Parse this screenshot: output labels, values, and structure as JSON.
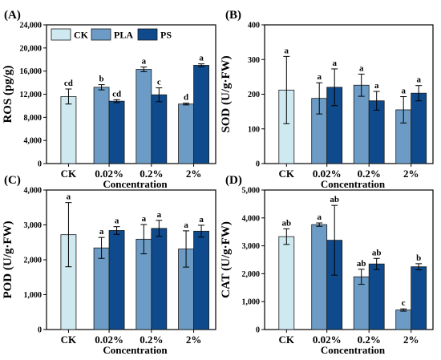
{
  "legend": {
    "entries": [
      {
        "name": "CK",
        "color": "#cfe9f1"
      },
      {
        "name": "PLA",
        "color": "#6c9cc6"
      },
      {
        "name": "PS",
        "color": "#0e4a8c"
      }
    ]
  },
  "chart_data": [
    {
      "panel": "(A)",
      "type": "bar",
      "ylabel": "ROS (pg/g)",
      "xlabel": "Concentration",
      "ylim": [
        0,
        24000
      ],
      "yticks": [
        0,
        4000,
        8000,
        12000,
        16000,
        20000,
        24000
      ],
      "ytick_labels": [
        "0",
        "4,000",
        "8,000",
        "12,000",
        "16,000",
        "20,000",
        "24,000"
      ],
      "categories": [
        "CK",
        "0.02%",
        "0.2%",
        "2%"
      ],
      "groups": [
        {
          "category": "CK",
          "bars": [
            {
              "series": "CK",
              "value": 11600,
              "err": 1300,
              "label": "cd"
            }
          ]
        },
        {
          "category": "0.02%",
          "bars": [
            {
              "series": "PLA",
              "value": 13200,
              "err": 450,
              "label": "b"
            },
            {
              "series": "PS",
              "value": 10800,
              "err": 250,
              "label": "cd"
            }
          ]
        },
        {
          "category": "0.2%",
          "bars": [
            {
              "series": "PLA",
              "value": 16300,
              "err": 400,
              "label": "a"
            },
            {
              "series": "PS",
              "value": 11900,
              "err": 1200,
              "label": "c"
            }
          ]
        },
        {
          "category": "2%",
          "bars": [
            {
              "series": "PLA",
              "value": 10300,
              "err": 150,
              "label": "d"
            },
            {
              "series": "PS",
              "value": 17000,
              "err": 250,
              "label": "a"
            }
          ]
        }
      ]
    },
    {
      "panel": "(B)",
      "type": "bar",
      "ylabel": "SOD (U/g·FW)",
      "xlabel": "Concentration",
      "ylim": [
        0,
        400
      ],
      "yticks": [
        0,
        100,
        200,
        300,
        400
      ],
      "ytick_labels": [
        "0",
        "100",
        "200",
        "300",
        "400"
      ],
      "categories": [
        "CK",
        "0.02%",
        "0.2%",
        "2%"
      ],
      "groups": [
        {
          "category": "CK",
          "bars": [
            {
              "series": "CK",
              "value": 212,
              "err": 97,
              "label": "a"
            }
          ]
        },
        {
          "category": "0.02%",
          "bars": [
            {
              "series": "PLA",
              "value": 188,
              "err": 45,
              "label": "a"
            },
            {
              "series": "PS",
              "value": 220,
              "err": 53,
              "label": "a"
            }
          ]
        },
        {
          "category": "0.2%",
          "bars": [
            {
              "series": "PLA",
              "value": 226,
              "err": 32,
              "label": "a"
            },
            {
              "series": "PS",
              "value": 181,
              "err": 27,
              "label": "a"
            }
          ]
        },
        {
          "category": "2%",
          "bars": [
            {
              "series": "PLA",
              "value": 155,
              "err": 38,
              "label": "a"
            },
            {
              "series": "PS",
              "value": 203,
              "err": 22,
              "label": "a"
            }
          ]
        }
      ]
    },
    {
      "panel": "(C)",
      "type": "bar",
      "ylabel": "POD (U/g·FW)",
      "xlabel": "Concentration",
      "ylim": [
        0,
        4000
      ],
      "yticks": [
        0,
        1000,
        2000,
        3000,
        4000
      ],
      "ytick_labels": [
        "0",
        "1,000",
        "2,000",
        "3,000",
        "4,000"
      ],
      "categories": [
        "CK",
        "0.02%",
        "0.2%",
        "2%"
      ],
      "groups": [
        {
          "category": "CK",
          "bars": [
            {
              "series": "CK",
              "value": 2720,
              "err": 920,
              "label": "a"
            }
          ]
        },
        {
          "category": "0.02%",
          "bars": [
            {
              "series": "PLA",
              "value": 2340,
              "err": 300,
              "label": "a"
            },
            {
              "series": "PS",
              "value": 2840,
              "err": 110,
              "label": "a"
            }
          ]
        },
        {
          "category": "0.2%",
          "bars": [
            {
              "series": "PLA",
              "value": 2590,
              "err": 420,
              "label": "a"
            },
            {
              "series": "PS",
              "value": 2900,
              "err": 230,
              "label": "a"
            }
          ]
        },
        {
          "category": "2%",
          "bars": [
            {
              "series": "PLA",
              "value": 2310,
              "err": 520,
              "label": "a"
            },
            {
              "series": "PS",
              "value": 2820,
              "err": 170,
              "label": "a"
            }
          ]
        }
      ]
    },
    {
      "panel": "(D)",
      "type": "bar",
      "ylabel": "CAT (U/g·FW)",
      "xlabel": "Concentration",
      "ylim": [
        0,
        5000
      ],
      "yticks": [
        0,
        1000,
        2000,
        3000,
        4000,
        5000
      ],
      "ytick_labels": [
        "0",
        "1,000",
        "2,000",
        "3,000",
        "4,000",
        "5,000"
      ],
      "categories": [
        "CK",
        "0.02%",
        "0.2%",
        "2%"
      ],
      "groups": [
        {
          "category": "CK",
          "bars": [
            {
              "series": "CK",
              "value": 3330,
              "err": 280,
              "label": "ab"
            }
          ]
        },
        {
          "category": "0.02%",
          "bars": [
            {
              "series": "PLA",
              "value": 3760,
              "err": 60,
              "label": "a"
            },
            {
              "series": "PS",
              "value": 3200,
              "err": 1250,
              "label": "ab"
            }
          ]
        },
        {
          "category": "0.2%",
          "bars": [
            {
              "series": "PLA",
              "value": 1890,
              "err": 270,
              "label": "ab"
            },
            {
              "series": "PS",
              "value": 2350,
              "err": 200,
              "label": "ab"
            }
          ]
        },
        {
          "category": "2%",
          "bars": [
            {
              "series": "PLA",
              "value": 700,
              "err": 40,
              "label": "c"
            },
            {
              "series": "PS",
              "value": 2250,
              "err": 110,
              "label": "b"
            }
          ]
        }
      ]
    }
  ]
}
